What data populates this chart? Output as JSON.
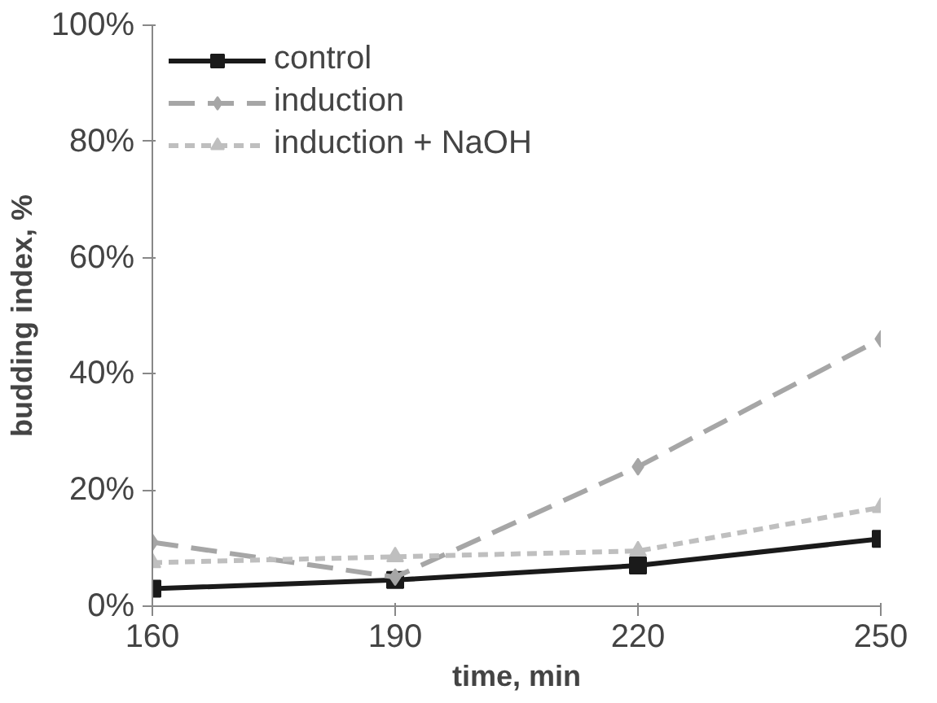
{
  "chart_data": {
    "type": "line",
    "xlabel": "time, min",
    "ylabel": "budding index, %",
    "x": [
      160,
      190,
      220,
      250
    ],
    "series": [
      {
        "name": "control",
        "color": "#1a1a1a",
        "values": [
          3,
          4.5,
          7,
          11.6
        ],
        "marker": "square",
        "line_style": "solid"
      },
      {
        "name": "induction",
        "color": "#a6a6a6",
        "values": [
          11,
          5,
          24,
          46
        ],
        "marker": "diamond",
        "line_style": "dashed"
      },
      {
        "name": "induction + NaOH",
        "color": "#bfbfbf",
        "values": [
          7.5,
          8.5,
          9.5,
          17
        ],
        "marker": "triangle",
        "line_style": "dotted"
      }
    ],
    "xlim": [
      160,
      250
    ],
    "xticks": [
      160,
      190,
      220,
      250
    ],
    "ylim": [
      0,
      100
    ],
    "yticks": [
      {
        "value": 0,
        "label": "0%"
      },
      {
        "value": 20,
        "label": "20%"
      },
      {
        "value": 40,
        "label": "40%"
      },
      {
        "value": 60,
        "label": "60%"
      },
      {
        "value": 80,
        "label": "80%"
      },
      {
        "value": 100,
        "label": "100%"
      }
    ],
    "grid": false,
    "legend": "top left"
  }
}
